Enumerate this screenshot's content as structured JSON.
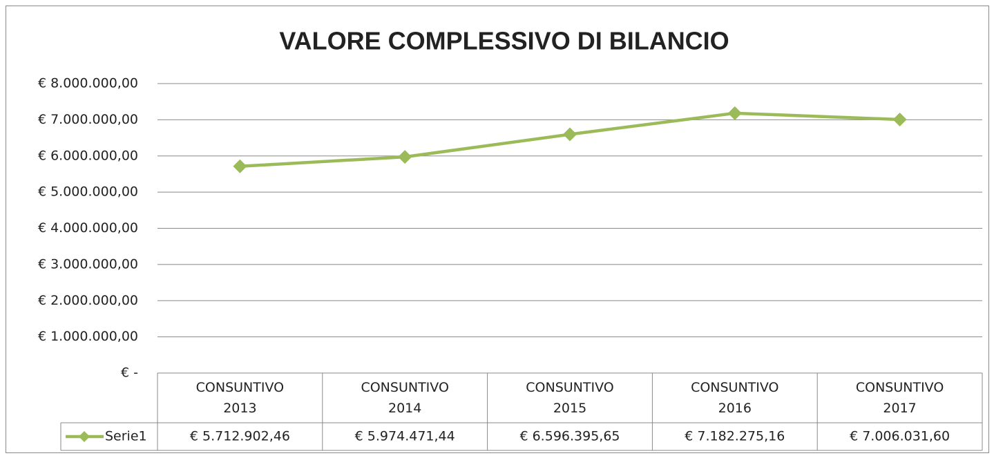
{
  "chart_data": {
    "type": "line",
    "title": "VALORE COMPLESSIVO DI BILANCIO",
    "categories": [
      "CONSUNTIVO 2013",
      "CONSUNTIVO 2014",
      "CONSUNTIVO 2015",
      "CONSUNTIVO 2016",
      "CONSUNTIVO 2017"
    ],
    "series": [
      {
        "name": "Serie1",
        "color": "#9bbb59",
        "values": [
          5712902.46,
          5974471.44,
          6596395.65,
          7182275.16,
          7006031.6
        ],
        "value_labels": [
          "€ 5.712.902,46",
          "€ 5.974.471,44",
          "€ 6.596.395,65",
          "€ 7.182.275,16",
          "€ 7.006.031,60"
        ]
      }
    ],
    "ylim": [
      0,
      8000000
    ],
    "yticks": [
      {
        "value": 0,
        "label": "€ -"
      },
      {
        "value": 1000000,
        "label": "€ 1.000.000,00"
      },
      {
        "value": 2000000,
        "label": "€ 2.000.000,00"
      },
      {
        "value": 3000000,
        "label": "€ 3.000.000,00"
      },
      {
        "value": 4000000,
        "label": "€ 4.000.000,00"
      },
      {
        "value": 5000000,
        "label": "€ 5.000.000,00"
      },
      {
        "value": 6000000,
        "label": "€ 6.000.000,00"
      },
      {
        "value": 7000000,
        "label": "€ 7.000.000,00"
      },
      {
        "value": 8000000,
        "label": "€ 8.000.000,00"
      }
    ],
    "grid": true
  }
}
